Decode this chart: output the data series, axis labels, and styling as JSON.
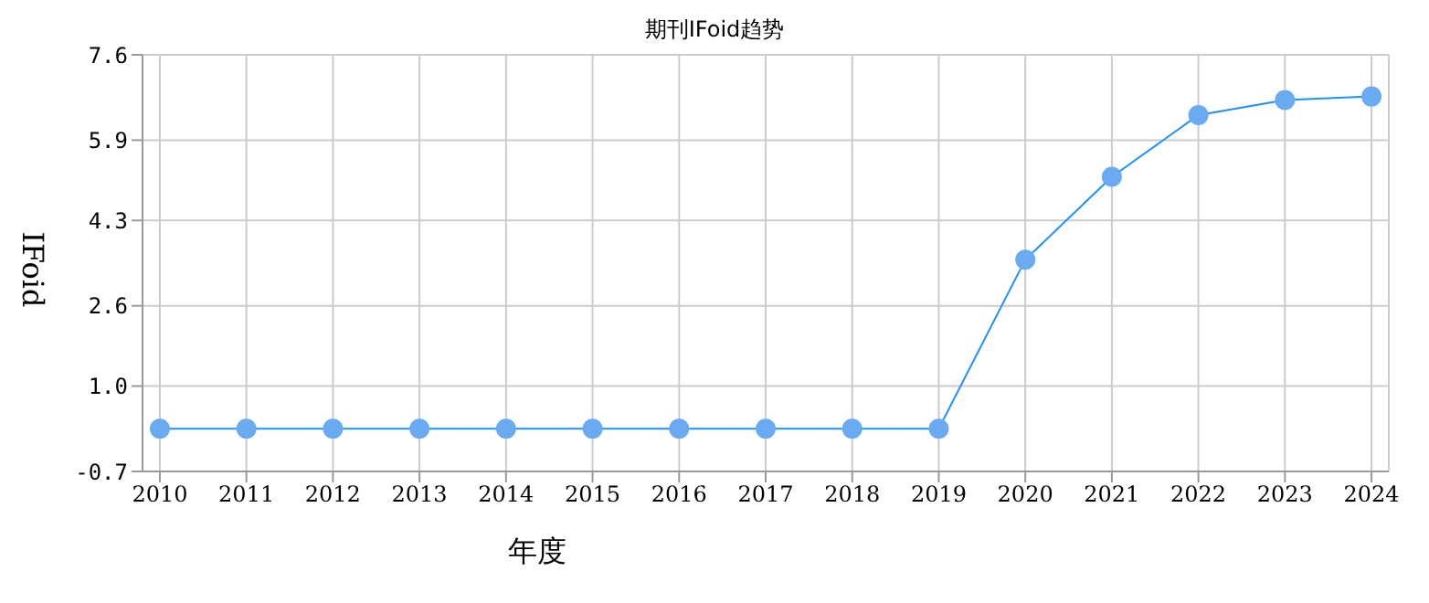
{
  "chart_data": {
    "type": "line",
    "title": "期刊IFoid趋势",
    "xlabel": "年度",
    "ylabel": "IFoid",
    "categories": [
      "2010",
      "2011",
      "2012",
      "2013",
      "2014",
      "2015",
      "2016",
      "2017",
      "2018",
      "2019",
      "2020",
      "2021",
      "2022",
      "2023",
      "2024"
    ],
    "series": [
      {
        "color": "#1e90ff",
        "values": [
          0.15,
          0.15,
          0.15,
          0.15,
          0.15,
          0.15,
          0.15,
          0.15,
          0.15,
          0.15,
          3.52,
          5.17,
          6.4,
          6.7,
          6.77
        ]
      }
    ],
    "ylim": [
      -0.7,
      7.6
    ],
    "yticks": [
      -0.7,
      {
        "value": 1,
        "label": "1.0"
      },
      2.6,
      4.3,
      5.9,
      7.6
    ],
    "grid": true,
    "marker": "circle"
  }
}
